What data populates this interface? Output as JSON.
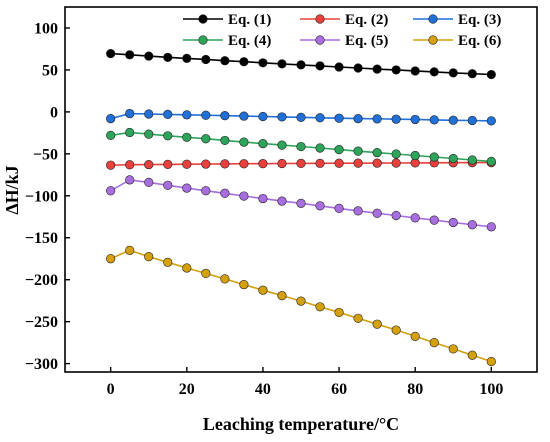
{
  "chart_data": {
    "type": "line",
    "xlabel": "Leaching temperature/°C",
    "ylabel": "ΔH/kJ",
    "xlim": [
      -12,
      112
    ],
    "ylim": [
      -310,
      125
    ],
    "xticks": [
      0,
      20,
      40,
      60,
      80,
      100
    ],
    "yticks": [
      100,
      50,
      0,
      -50,
      -100,
      -150,
      -200,
      -250,
      -300
    ],
    "xtick_labels": [
      "0",
      "20",
      "40",
      "60",
      "80",
      "100"
    ],
    "ytick_labels": [
      "100",
      "50",
      "0",
      "−50",
      "−100",
      "−150",
      "−200",
      "−250",
      "−300"
    ],
    "grid": false,
    "legend_position": "top",
    "x": [
      0,
      5,
      10,
      15,
      20,
      25,
      30,
      35,
      40,
      45,
      50,
      55,
      60,
      65,
      70,
      75,
      80,
      85,
      90,
      95,
      100
    ],
    "series": [
      {
        "name": "Eq. (1)",
        "color": "#000000",
        "values": [
          69.5,
          68,
          66.5,
          65,
          63.8,
          62.5,
          61,
          59.8,
          58.5,
          57.2,
          56,
          54.8,
          53.5,
          52.3,
          51,
          50,
          48.8,
          47.7,
          46.5,
          45.5,
          44.5
        ]
      },
      {
        "name": "Eq. (2)",
        "color": "#e8403c",
        "values": [
          -63.5,
          -63,
          -62.8,
          -62.6,
          -62.4,
          -62.2,
          -62,
          -61.8,
          -61.7,
          -61.5,
          -61.4,
          -61.3,
          -61.2,
          -61.1,
          -61,
          -60.9,
          -60.8,
          -60.7,
          -60.6,
          -60.5,
          -60.5
        ]
      },
      {
        "name": "Eq. (3)",
        "color": "#2070d8",
        "values": [
          -8,
          -2,
          -2.5,
          -3,
          -3.5,
          -4,
          -4.5,
          -5,
          -5.5,
          -6,
          -6.5,
          -7,
          -7.5,
          -8,
          -8.3,
          -8.7,
          -9,
          -9.5,
          -10,
          -10.3,
          -10.7
        ]
      },
      {
        "name": "Eq. (4)",
        "color": "#2ea45a",
        "values": [
          -28,
          -24.5,
          -26.5,
          -28.5,
          -30.3,
          -32,
          -34,
          -36,
          -37.8,
          -39.6,
          -41.3,
          -43,
          -45,
          -46.8,
          -48.5,
          -50.2,
          -52,
          -53.8,
          -55.5,
          -57.3,
          -59
        ]
      },
      {
        "name": "Eq. (5)",
        "color": "#a86ee0",
        "values": [
          -94,
          -81,
          -84,
          -87.5,
          -90.8,
          -94,
          -97,
          -100.3,
          -103.3,
          -106.3,
          -109,
          -112,
          -115,
          -118,
          -120.8,
          -123.5,
          -126.3,
          -129,
          -131.8,
          -134.5,
          -137
        ]
      },
      {
        "name": "Eq. (6)",
        "color": "#d4a00e",
        "values": [
          -175,
          -165,
          -172.5,
          -179.3,
          -186,
          -192.5,
          -199,
          -205.8,
          -212.5,
          -219,
          -225.5,
          -232.3,
          -239,
          -246,
          -253,
          -260,
          -267.5,
          -275,
          -282.5,
          -290,
          -297.5
        ]
      }
    ]
  }
}
